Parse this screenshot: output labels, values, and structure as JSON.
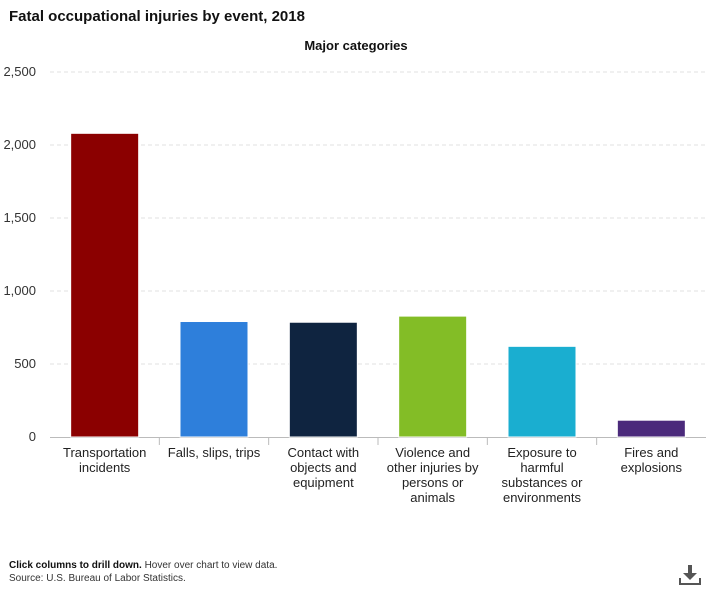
{
  "title": "Fatal occupational injuries by event, 2018",
  "footer": {
    "instruction_bold": "Click columns to drill down.",
    "instruction_rest": " Hover over chart to view data.",
    "source": "Source: U.S. Bureau of Labor Statistics."
  },
  "icons": {
    "download": "download-icon"
  },
  "chart_data": {
    "type": "bar",
    "title": "Fatal occupational injuries by event, 2018",
    "subtitle": "Major categories",
    "xlabel": "",
    "ylabel": "",
    "ylim": [
      0,
      2500
    ],
    "yticks": [
      "0",
      "500",
      "1,000",
      "1,500",
      "2,000",
      "2,500"
    ],
    "ytick_values": [
      0,
      500,
      1000,
      1500,
      2000,
      2500
    ],
    "grid": true,
    "categories": [
      [
        "Transportation",
        "incidents"
      ],
      [
        "Falls, slips, trips"
      ],
      [
        "Contact with",
        "objects and",
        "equipment"
      ],
      [
        "Violence and",
        "other injuries by",
        "persons or",
        "animals"
      ],
      [
        "Exposure to",
        "harmful",
        "substances or",
        "environments"
      ],
      [
        "Fires and",
        "explosions"
      ]
    ],
    "values": [
      2080,
      791,
      786,
      828,
      621,
      115
    ],
    "colors": [
      "#8b0000",
      "#2e7fdb",
      "#0f2440",
      "#83bd26",
      "#1aaed0",
      "#4b2a7b"
    ]
  }
}
